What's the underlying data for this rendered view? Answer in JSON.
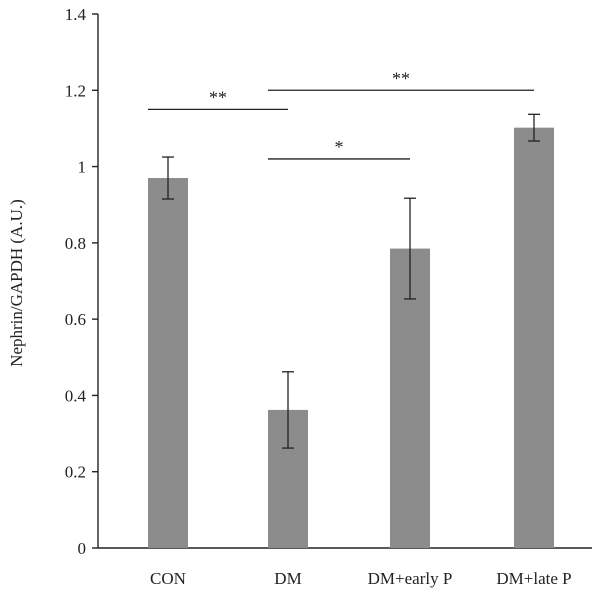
{
  "chart_data": {
    "type": "bar",
    "title": "",
    "xlabel": "",
    "ylabel": "Nephrin/GAPDH (A.U.)",
    "ylim": [
      0,
      1.4
    ],
    "yticks": [
      0,
      0.2,
      0.4,
      0.6,
      0.8,
      1,
      1.2,
      1.4
    ],
    "ytick_labels": [
      "0",
      "0.2",
      "0.4",
      "0.6",
      "0.8",
      "1",
      "1.2",
      "1.4"
    ],
    "categories": [
      "CON",
      "DM",
      "DM+early P",
      "DM+late P"
    ],
    "values": [
      0.97,
      0.362,
      0.785,
      1.102
    ],
    "errors": [
      0.055,
      0.1,
      0.132,
      0.035
    ],
    "bar_color": "#8c8c8c",
    "grid": false,
    "significance": [
      {
        "label": "**",
        "from": "CON",
        "to": "DM",
        "y": 1.15
      },
      {
        "label": "**",
        "from": "DM",
        "to": "DM+late P",
        "y": 1.2
      },
      {
        "label": "*",
        "from": "DM",
        "to": "DM+early P",
        "y": 1.02
      }
    ]
  }
}
